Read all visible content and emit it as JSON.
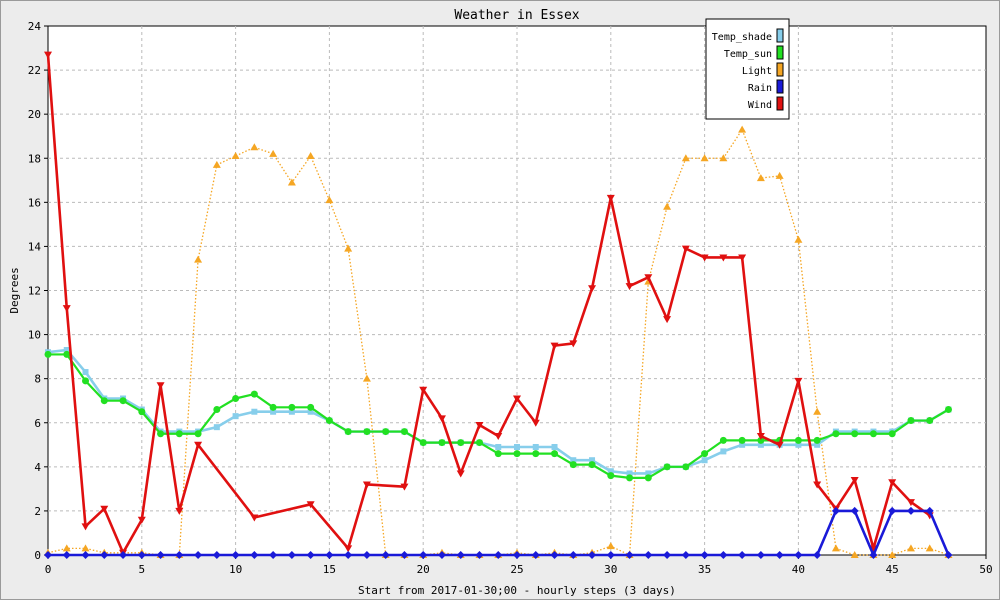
{
  "chart_data": {
    "type": "line",
    "title": "Weather in Essex",
    "xlabel": "Start from 2017-01-30;00 - hourly steps (3 days)",
    "ylabel": "Degrees",
    "xlim": [
      0,
      50
    ],
    "ylim": [
      0,
      24
    ],
    "xticks": [
      0,
      5,
      10,
      15,
      20,
      25,
      30,
      35,
      40,
      45,
      50
    ],
    "yticks": [
      0,
      2,
      4,
      6,
      8,
      10,
      12,
      14,
      16,
      18,
      20,
      22,
      24
    ],
    "grid": true,
    "legend_position": "top-right",
    "x": [
      0,
      1,
      2,
      3,
      4,
      5,
      6,
      7,
      8,
      9,
      10,
      11,
      12,
      13,
      14,
      15,
      16,
      17,
      18,
      19,
      20,
      21,
      22,
      23,
      24,
      25,
      26,
      27,
      28,
      29,
      30,
      31,
      32,
      33,
      34,
      35,
      36,
      37,
      38,
      39,
      40,
      41,
      42,
      43,
      44,
      45,
      46,
      47,
      48
    ],
    "series": [
      {
        "name": "Temp_shade",
        "color": "#87ceeb",
        "style": "solid-thick",
        "marker": "square",
        "values": [
          9.2,
          9.3,
          8.3,
          7.1,
          7.1,
          6.6,
          5.6,
          5.6,
          5.6,
          5.8,
          6.3,
          6.5,
          6.5,
          6.5,
          6.5,
          6.1,
          5.6,
          5.6,
          5.6,
          5.6,
          5.1,
          5.1,
          5.1,
          5.1,
          4.9,
          4.9,
          4.9,
          4.9,
          4.3,
          4.3,
          3.8,
          3.7,
          3.7,
          4.0,
          4.0,
          4.3,
          4.7,
          5.0,
          5.0,
          5.0,
          5.0,
          5.0,
          5.6,
          5.6,
          5.6,
          5.6,
          6.1,
          6.1,
          6.6
        ]
      },
      {
        "name": "Temp_sun",
        "color": "#22e022",
        "style": "solid",
        "marker": "circle",
        "values": [
          9.1,
          9.1,
          7.9,
          7.0,
          7.0,
          6.5,
          5.5,
          5.5,
          5.5,
          6.6,
          7.1,
          7.3,
          6.7,
          6.7,
          6.7,
          6.1,
          5.6,
          5.6,
          5.6,
          5.6,
          5.1,
          5.1,
          5.1,
          5.1,
          4.6,
          4.6,
          4.6,
          4.6,
          4.1,
          4.1,
          3.6,
          3.5,
          3.5,
          4.0,
          4.0,
          4.6,
          5.2,
          5.2,
          5.2,
          5.2,
          5.2,
          5.2,
          5.5,
          5.5,
          5.5,
          5.5,
          6.1,
          6.1,
          6.6
        ]
      },
      {
        "name": "Light",
        "color": "#f5a623",
        "style": "dotted",
        "marker": "triangle-up",
        "values": [
          0.1,
          0.3,
          0.3,
          0.1,
          0.1,
          0.1,
          0.0,
          0.0,
          13.4,
          17.7,
          18.1,
          18.5,
          18.2,
          16.9,
          18.1,
          16.1,
          13.9,
          8.0,
          0.0,
          0.0,
          0.0,
          0.1,
          0.0,
          0.0,
          0.0,
          0.1,
          0.0,
          0.1,
          0.0,
          0.1,
          0.4,
          0.0,
          12.4,
          15.8,
          18.0,
          18.0,
          18.0,
          19.3,
          17.1,
          17.2,
          14.3,
          6.5,
          0.3,
          0.0,
          0.0,
          0.0,
          0.3,
          0.3,
          0.0
        ]
      },
      {
        "name": "Rain",
        "color": "#1a1ad8",
        "style": "solid-thick",
        "marker": "diamond",
        "values": [
          0,
          0,
          0,
          0,
          0,
          0,
          0,
          0,
          0,
          0,
          0,
          0,
          0,
          0,
          0,
          0,
          0,
          0,
          0,
          0,
          0,
          0,
          0,
          0,
          0,
          0,
          0,
          0,
          0,
          0,
          0,
          0,
          0,
          0,
          0,
          0,
          0,
          0,
          0,
          0,
          0,
          0,
          2.0,
          2.0,
          0,
          2.0,
          2.0,
          2.0,
          0
        ]
      },
      {
        "name": "Wind",
        "color": "#e01010",
        "style": "solid-thick",
        "marker": "triangle-down",
        "x": [
          0,
          1,
          2,
          3,
          4,
          5,
          6,
          7,
          8,
          11,
          14,
          16,
          17,
          19,
          20,
          21,
          22,
          23,
          24,
          25,
          26,
          27,
          28,
          29,
          30,
          31,
          32,
          33,
          34,
          35,
          36,
          37,
          38,
          39,
          40,
          41,
          42,
          43,
          44,
          45,
          46,
          47
        ],
        "values": [
          22.7,
          11.2,
          1.3,
          2.1,
          0.1,
          1.6,
          7.7,
          2.0,
          5.0,
          1.7,
          2.3,
          0.3,
          3.2,
          3.1,
          7.5,
          6.2,
          3.7,
          5.9,
          5.4,
          7.1,
          6.0,
          9.5,
          9.6,
          12.1,
          16.2,
          12.2,
          12.6,
          10.7,
          13.9,
          13.5,
          13.5,
          13.5,
          5.4,
          5.0,
          7.9,
          3.2,
          2.1,
          3.4,
          0.3,
          3.3,
          2.4,
          1.8
        ]
      }
    ]
  }
}
